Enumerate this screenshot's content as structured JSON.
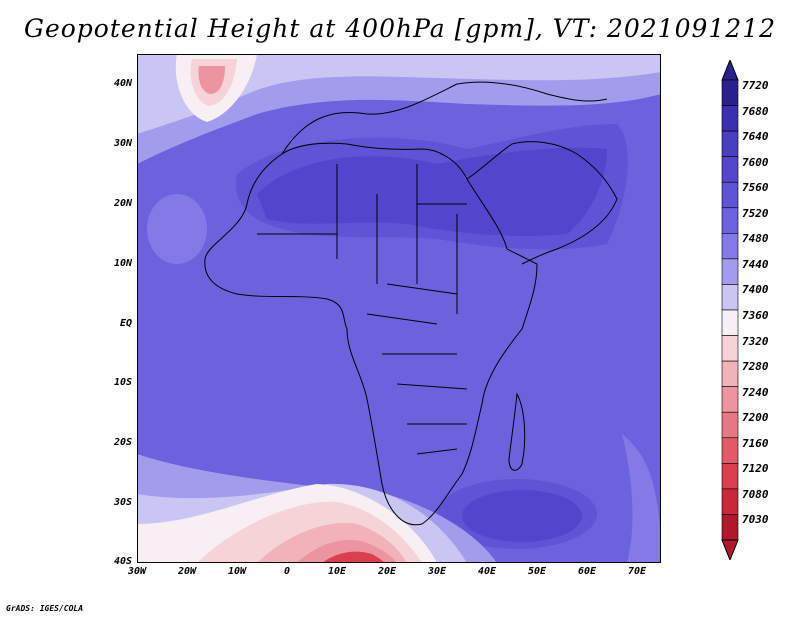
{
  "title": "Geopotential Height at 400hPa [gpm], VT: 2021091212",
  "credit": "GrADS: IGES/COLA",
  "latitude_labels": [
    "40N",
    "30N",
    "20N",
    "10N",
    "EQ",
    "10S",
    "20S",
    "30S",
    "40S"
  ],
  "longitude_labels": [
    "30W",
    "20W",
    "10W",
    "0",
    "10E",
    "20E",
    "30E",
    "40E",
    "50E",
    "60E",
    "70E"
  ],
  "colorbar": {
    "levels": [
      "7720",
      "7680",
      "7640",
      "7600",
      "7560",
      "7520",
      "7480",
      "7440",
      "7400",
      "7360",
      "7320",
      "7280",
      "7240",
      "7200",
      "7160",
      "7120",
      "7080",
      "7030"
    ],
    "colors": [
      "#2a1f8f",
      "#3a2fae",
      "#4a3fc0",
      "#5446cc",
      "#5f53d6",
      "#6d62de",
      "#8479e6",
      "#a39ced",
      "#c9c6f4",
      "#f7eff3",
      "#f6d3d7",
      "#f1b2ba",
      "#ec949f",
      "#e67884",
      "#e05a68",
      "#d93f4f",
      "#c8283a",
      "#b0182c"
    ]
  },
  "map": {
    "region": "Africa and surrounding oceans",
    "lon_range": [
      -30,
      75
    ],
    "lat_range": [
      -40,
      45
    ],
    "field": "Geopotential Height at 400hPa",
    "units": "gpm",
    "valid_time": "2021091212"
  }
}
